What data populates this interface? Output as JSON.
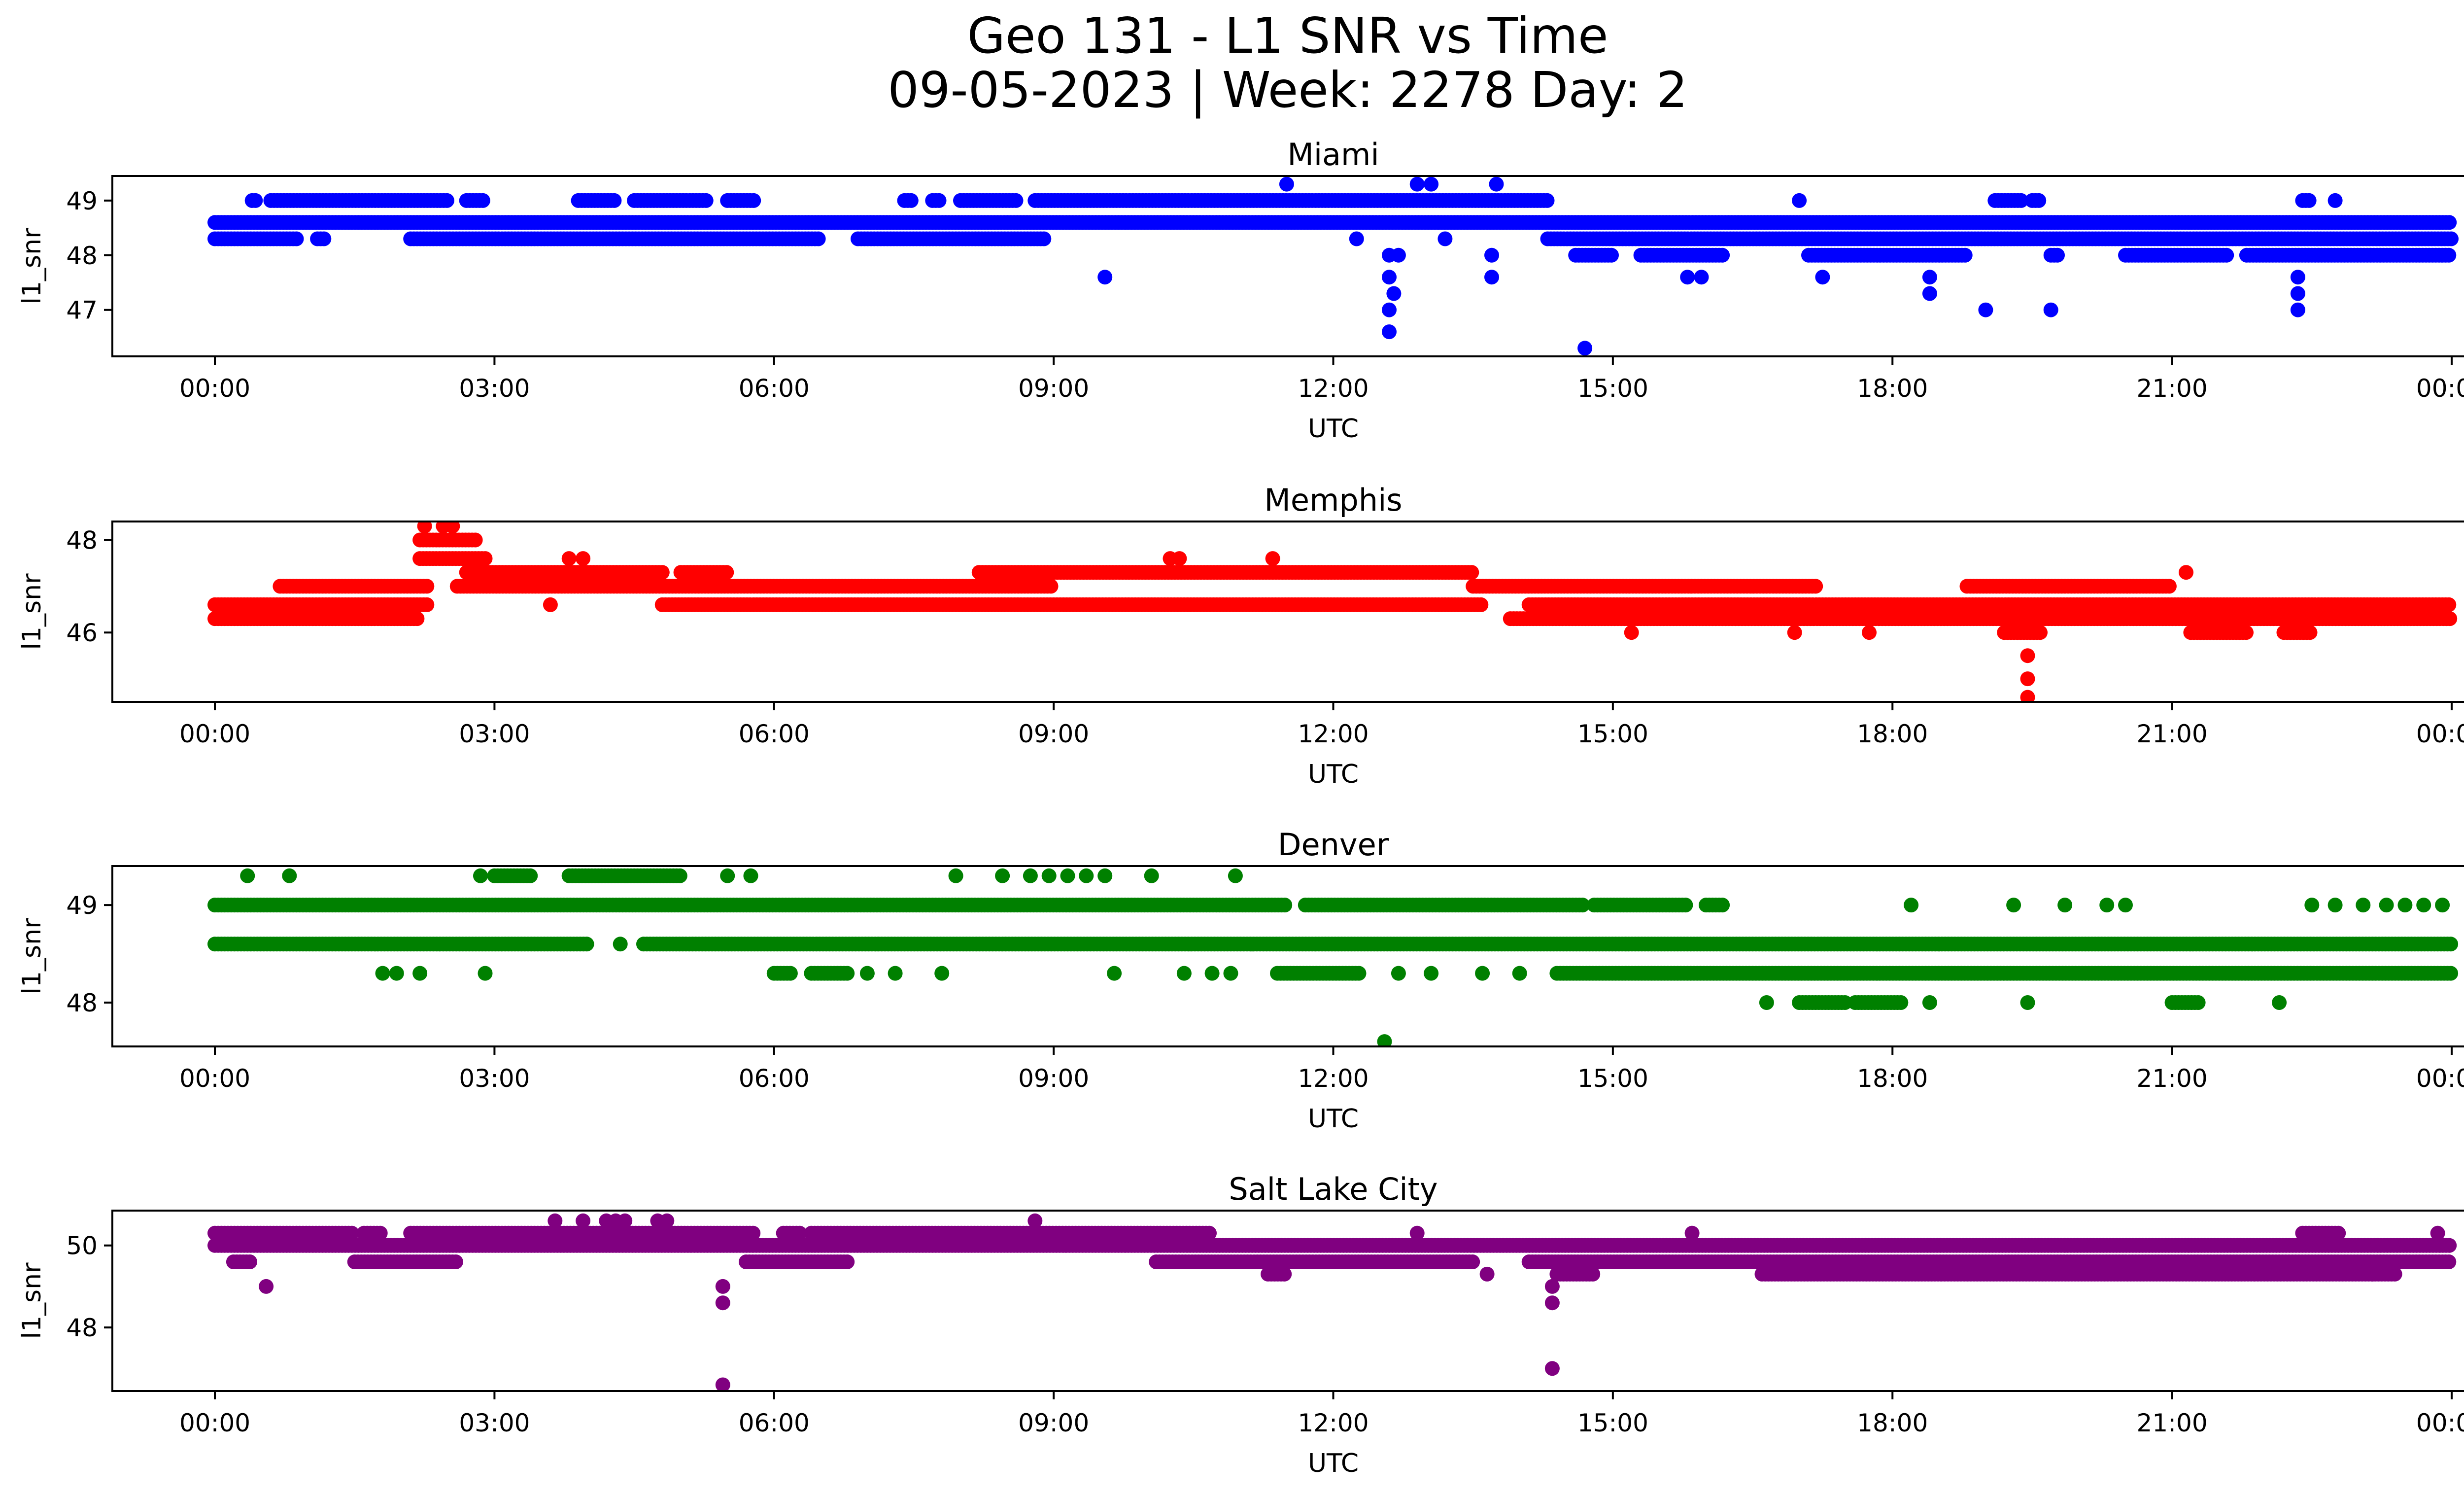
{
  "figure": {
    "title_line1": "Geo 131 - L1 SNR vs Time",
    "title_line2": "09-05-2023 | Week: 2278 Day: 2"
  },
  "chart_data": [
    {
      "type": "scatter",
      "title": "Miami",
      "xlabel": "UTC",
      "ylabel": "l1_snr",
      "color": "#0000ff",
      "xlim_hours": [
        -1.1,
        25.1
      ],
      "ylim": [
        46.15,
        49.45
      ],
      "yticks": [
        47,
        48,
        49
      ],
      "xticks": [
        "00:00",
        "03:00",
        "06:00",
        "09:00",
        "12:00",
        "15:00",
        "18:00",
        "21:00",
        "00:00"
      ],
      "levels": [
        {
          "y": 48.6,
          "segments": [
            [
              0,
              24
            ]
          ]
        },
        {
          "y": 48.3,
          "segments": [
            [
              0,
              0.9
            ],
            [
              1.1,
              1.2
            ],
            [
              2.1,
              6.5
            ],
            [
              6.9,
              8.9
            ],
            [
              14.3,
              24
            ]
          ]
        },
        {
          "y": 49.0,
          "segments": [
            [
              0.4,
              0.45
            ],
            [
              0.6,
              2.5
            ],
            [
              2.7,
              2.9
            ],
            [
              3.9,
              4.3
            ],
            [
              4.5,
              5.3
            ],
            [
              5.5,
              5.8
            ],
            [
              7.4,
              7.5
            ],
            [
              7.7,
              7.8
            ],
            [
              8.0,
              8.6
            ],
            [
              8.8,
              14.3
            ],
            [
              19.1,
              19.4
            ],
            [
              19.5,
              19.6
            ],
            [
              22.4,
              22.5
            ]
          ]
        },
        {
          "y": 48.0,
          "segments": [
            [
              14.6,
              15.0
            ],
            [
              15.3,
              16.2
            ],
            [
              17.1,
              18.8
            ],
            [
              19.7,
              19.8
            ],
            [
              20.5,
              21.6
            ],
            [
              21.8,
              24
            ]
          ]
        }
      ],
      "points": [
        {
          "x": 9.55,
          "y": 47.6
        },
        {
          "x": 11.5,
          "y": 49.3
        },
        {
          "x": 12.9,
          "y": 49.3
        },
        {
          "x": 13.05,
          "y": 49.3
        },
        {
          "x": 13.75,
          "y": 49.3
        },
        {
          "x": 12.25,
          "y": 48.3
        },
        {
          "x": 13.2,
          "y": 48.3
        },
        {
          "x": 12.6,
          "y": 48.0
        },
        {
          "x": 12.7,
          "y": 48.0
        },
        {
          "x": 12.6,
          "y": 47.6
        },
        {
          "x": 12.65,
          "y": 47.3
        },
        {
          "x": 12.6,
          "y": 47.0
        },
        {
          "x": 12.6,
          "y": 46.6
        },
        {
          "x": 13.7,
          "y": 48.0
        },
        {
          "x": 13.7,
          "y": 47.6
        },
        {
          "x": 14.7,
          "y": 46.3
        },
        {
          "x": 15.8,
          "y": 47.6
        },
        {
          "x": 15.95,
          "y": 47.6
        },
        {
          "x": 17.0,
          "y": 49.0
        },
        {
          "x": 17.25,
          "y": 47.6
        },
        {
          "x": 18.4,
          "y": 47.6
        },
        {
          "x": 18.4,
          "y": 47.3
        },
        {
          "x": 19.0,
          "y": 47.0
        },
        {
          "x": 19.7,
          "y": 47.0
        },
        {
          "x": 22.35,
          "y": 47.6
        },
        {
          "x": 22.35,
          "y": 47.3
        },
        {
          "x": 22.35,
          "y": 47.0
        },
        {
          "x": 22.75,
          "y": 49.0
        }
      ]
    },
    {
      "type": "scatter",
      "title": "Memphis",
      "xlabel": "UTC",
      "ylabel": "l1_snr",
      "color": "#ff0000",
      "xlim_hours": [
        -1.1,
        25.1
      ],
      "ylim": [
        44.5,
        48.4
      ],
      "yticks": [
        46,
        48
      ],
      "xticks": [
        "00:00",
        "03:00",
        "06:00",
        "09:00",
        "12:00",
        "15:00",
        "18:00",
        "21:00",
        "00:00"
      ],
      "levels": [
        {
          "y": 46.3,
          "segments": [
            [
              0,
              2.2
            ],
            [
              13.9,
              24
            ]
          ]
        },
        {
          "y": 46.6,
          "segments": [
            [
              0,
              2.3
            ],
            [
              4.8,
              13.6
            ],
            [
              14.1,
              24
            ]
          ]
        },
        {
          "y": 47.0,
          "segments": [
            [
              0.7,
              2.3
            ],
            [
              2.6,
              9.0
            ],
            [
              13.5,
              17.2
            ],
            [
              18.8,
              21.0
            ]
          ]
        },
        {
          "y": 47.3,
          "segments": [
            [
              2.7,
              4.8
            ],
            [
              5.0,
              5.5
            ],
            [
              8.2,
              13.5
            ]
          ]
        },
        {
          "y": 47.6,
          "segments": [
            [
              2.2,
              2.9
            ]
          ]
        },
        {
          "y": 48.0,
          "segments": [
            [
              2.2,
              2.8
            ]
          ]
        },
        {
          "y": 46.0,
          "segments": [
            [
              19.2,
              19.6
            ],
            [
              21.2,
              21.8
            ],
            [
              22.2,
              22.5
            ]
          ]
        }
      ],
      "points": [
        {
          "x": 2.25,
          "y": 48.3
        },
        {
          "x": 2.45,
          "y": 48.3
        },
        {
          "x": 2.55,
          "y": 48.3
        },
        {
          "x": 3.8,
          "y": 47.6
        },
        {
          "x": 3.95,
          "y": 47.6
        },
        {
          "x": 3.6,
          "y": 46.6
        },
        {
          "x": 10.25,
          "y": 47.6
        },
        {
          "x": 10.35,
          "y": 47.6
        },
        {
          "x": 11.35,
          "y": 47.6
        },
        {
          "x": 15.2,
          "y": 46.0
        },
        {
          "x": 16.95,
          "y": 46.0
        },
        {
          "x": 17.75,
          "y": 46.0
        },
        {
          "x": 21.15,
          "y": 47.3
        },
        {
          "x": 19.45,
          "y": 45.5
        },
        {
          "x": 19.45,
          "y": 45.0
        },
        {
          "x": 19.45,
          "y": 44.6
        }
      ]
    },
    {
      "type": "scatter",
      "title": "Denver",
      "xlabel": "UTC",
      "ylabel": "l1_snr",
      "color": "#008000",
      "xlim_hours": [
        -1.1,
        25.1
      ],
      "ylim": [
        47.55,
        49.4
      ],
      "yticks": [
        48,
        49
      ],
      "xticks": [
        "00:00",
        "03:00",
        "06:00",
        "09:00",
        "12:00",
        "15:00",
        "18:00",
        "21:00",
        "00:00"
      ],
      "levels": [
        {
          "y": 48.6,
          "segments": [
            [
              0,
              4.0
            ],
            [
              4.6,
              24
            ]
          ]
        },
        {
          "y": 49.0,
          "segments": [
            [
              0,
              11.5
            ],
            [
              11.7,
              14.7
            ],
            [
              14.8,
              15.8
            ],
            [
              16.0,
              16.2
            ]
          ]
        },
        {
          "y": 48.3,
          "segments": [
            [
              6.0,
              6.2
            ],
            [
              6.4,
              6.8
            ],
            [
              11.4,
              12.3
            ],
            [
              14.4,
              24
            ]
          ]
        },
        {
          "y": 49.3,
          "segments": [
            [
              3.8,
              5.0
            ],
            [
              3.0,
              3.4
            ]
          ]
        },
        {
          "y": 48.0,
          "segments": [
            [
              17.0,
              17.5
            ],
            [
              17.6,
              18.1
            ],
            [
              21.0,
              21.3
            ]
          ]
        }
      ],
      "points": [
        {
          "x": 0.35,
          "y": 49.3
        },
        {
          "x": 0.8,
          "y": 49.3
        },
        {
          "x": 2.85,
          "y": 49.3
        },
        {
          "x": 5.5,
          "y": 49.3
        },
        {
          "x": 5.75,
          "y": 49.3
        },
        {
          "x": 7.95,
          "y": 49.3
        },
        {
          "x": 8.45,
          "y": 49.3
        },
        {
          "x": 8.75,
          "y": 49.3
        },
        {
          "x": 8.95,
          "y": 49.3
        },
        {
          "x": 9.15,
          "y": 49.3
        },
        {
          "x": 9.35,
          "y": 49.3
        },
        {
          "x": 9.55,
          "y": 49.3
        },
        {
          "x": 10.05,
          "y": 49.3
        },
        {
          "x": 10.95,
          "y": 49.3
        },
        {
          "x": 4.35,
          "y": 48.6
        },
        {
          "x": 1.8,
          "y": 48.3
        },
        {
          "x": 1.95,
          "y": 48.3
        },
        {
          "x": 2.2,
          "y": 48.3
        },
        {
          "x": 2.9,
          "y": 48.3
        },
        {
          "x": 7.0,
          "y": 48.3
        },
        {
          "x": 7.3,
          "y": 48.3
        },
        {
          "x": 7.8,
          "y": 48.3
        },
        {
          "x": 9.65,
          "y": 48.3
        },
        {
          "x": 10.4,
          "y": 48.3
        },
        {
          "x": 10.7,
          "y": 48.3
        },
        {
          "x": 10.9,
          "y": 48.3
        },
        {
          "x": 12.7,
          "y": 48.3
        },
        {
          "x": 13.05,
          "y": 48.3
        },
        {
          "x": 13.6,
          "y": 48.3
        },
        {
          "x": 14.0,
          "y": 48.3
        },
        {
          "x": 16.65,
          "y": 48.0
        },
        {
          "x": 18.4,
          "y": 48.0
        },
        {
          "x": 19.45,
          "y": 48.0
        },
        {
          "x": 22.15,
          "y": 48.0
        },
        {
          "x": 12.55,
          "y": 47.6
        },
        {
          "x": 18.2,
          "y": 49.0
        },
        {
          "x": 19.3,
          "y": 49.0
        },
        {
          "x": 19.85,
          "y": 49.0
        },
        {
          "x": 20.3,
          "y": 49.0
        },
        {
          "x": 20.5,
          "y": 49.0
        },
        {
          "x": 22.5,
          "y": 49.0
        },
        {
          "x": 22.75,
          "y": 49.0
        },
        {
          "x": 23.05,
          "y": 49.0
        },
        {
          "x": 23.3,
          "y": 49.0
        },
        {
          "x": 23.5,
          "y": 49.0
        },
        {
          "x": 23.7,
          "y": 49.0
        },
        {
          "x": 23.9,
          "y": 49.0
        }
      ]
    },
    {
      "type": "scatter",
      "title": "Salt Lake City",
      "xlabel": "UTC",
      "ylabel": "l1_snr",
      "color": "#800080",
      "xlim_hours": [
        -1.1,
        25.1
      ],
      "ylim": [
        46.45,
        50.85
      ],
      "yticks": [
        48,
        50
      ],
      "xticks": [
        "00:00",
        "03:00",
        "06:00",
        "09:00",
        "12:00",
        "15:00",
        "18:00",
        "21:00",
        "00:00"
      ],
      "levels": [
        {
          "y": 50.0,
          "segments": [
            [
              0,
              24
            ]
          ]
        },
        {
          "y": 50.3,
          "segments": [
            [
              0,
              1.5
            ],
            [
              1.6,
              1.8
            ],
            [
              2.1,
              5.8
            ],
            [
              6.1,
              6.3
            ],
            [
              6.4,
              10.7
            ],
            [
              22.4,
              22.8
            ]
          ]
        },
        {
          "y": 49.6,
          "segments": [
            [
              0.2,
              0.4
            ],
            [
              1.5,
              2.6
            ],
            [
              5.7,
              6.8
            ],
            [
              10.1,
              13.5
            ],
            [
              14.1,
              24
            ]
          ]
        },
        {
          "y": 49.3,
          "segments": [
            [
              11.3,
              11.5
            ],
            [
              14.4,
              14.8
            ],
            [
              16.6,
              23.4
            ]
          ]
        }
      ],
      "points": [
        {
          "x": 0.55,
          "y": 49.0
        },
        {
          "x": 3.65,
          "y": 50.6
        },
        {
          "x": 3.95,
          "y": 50.6
        },
        {
          "x": 4.2,
          "y": 50.6
        },
        {
          "x": 4.3,
          "y": 50.6
        },
        {
          "x": 4.4,
          "y": 50.6
        },
        {
          "x": 4.75,
          "y": 50.6
        },
        {
          "x": 4.85,
          "y": 50.6
        },
        {
          "x": 8.8,
          "y": 50.6
        },
        {
          "x": 12.9,
          "y": 50.3
        },
        {
          "x": 15.85,
          "y": 50.3
        },
        {
          "x": 23.85,
          "y": 50.3
        },
        {
          "x": 5.45,
          "y": 49.0
        },
        {
          "x": 5.45,
          "y": 48.6
        },
        {
          "x": 5.45,
          "y": 46.6
        },
        {
          "x": 14.35,
          "y": 49.0
        },
        {
          "x": 14.35,
          "y": 48.6
        },
        {
          "x": 14.35,
          "y": 47.0
        },
        {
          "x": 13.65,
          "y": 49.3
        },
        {
          "x": 23.15,
          "y": 49.3
        }
      ]
    }
  ]
}
